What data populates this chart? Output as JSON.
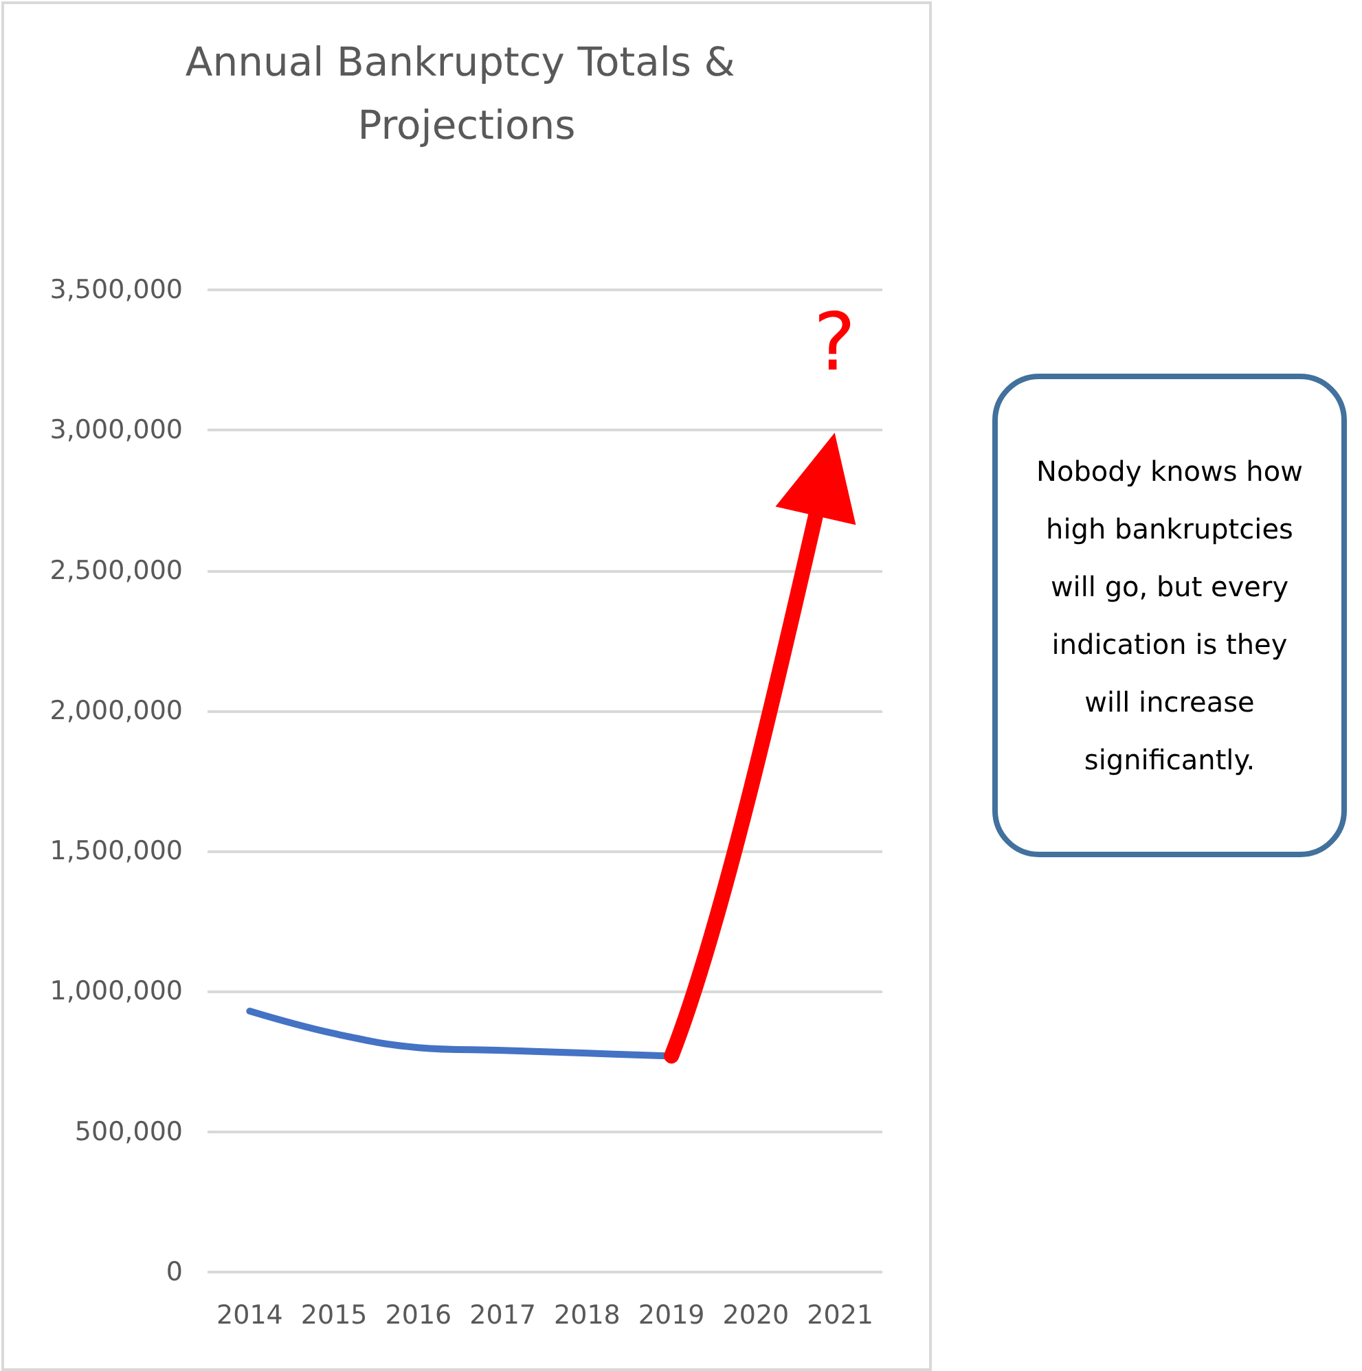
{
  "chart_data": {
    "type": "line",
    "title": "Annual Bankruptcy Totals & Projections",
    "categories": [
      "2014",
      "2015",
      "2016",
      "2017",
      "2018",
      "2019",
      "2020",
      "2021"
    ],
    "series": [
      {
        "color": "#4472c4",
        "values": [
          930000,
          850000,
          800000,
          790000,
          780000,
          770000,
          null,
          null
        ]
      }
    ],
    "ylim": [
      0,
      3500000
    ],
    "yticks": [
      {
        "value": 0,
        "label": "0"
      },
      {
        "value": 500000,
        "label": "500,000"
      },
      {
        "value": 1000000,
        "label": "1,000,000"
      },
      {
        "value": 1500000,
        "label": "1,500,000"
      },
      {
        "value": 2000000,
        "label": "2,000,000"
      },
      {
        "value": 2500000,
        "label": "2,500,000"
      },
      {
        "value": 3000000,
        "label": "3,000,000"
      },
      {
        "value": 3500000,
        "label": "3,500,000"
      }
    ],
    "grid": "y",
    "marker": "none",
    "line_style": "solid",
    "annotations": [
      "?",
      "Nobody knows how high bankruptcies will go, but every indication is they will increase significantly."
    ]
  }
}
